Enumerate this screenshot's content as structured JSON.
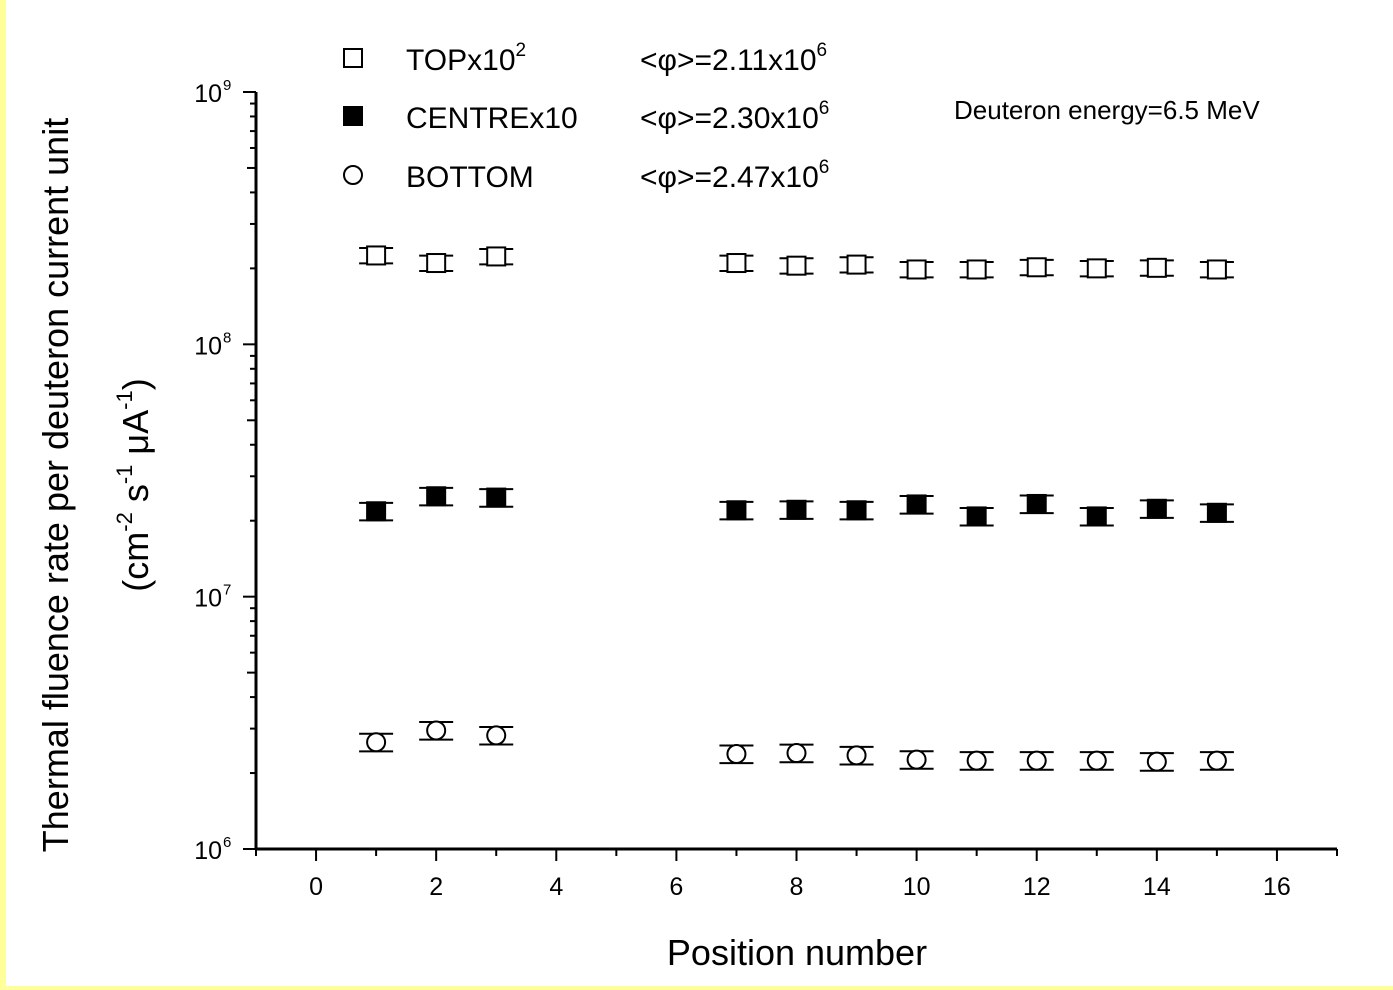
{
  "chart_data": {
    "type": "scatter",
    "title": "",
    "xlabel": "Position number",
    "ylabel_line1": "Thermal fluence rate per deuteron current unit",
    "ylabel_line2": {
      "open": "(cm",
      "e1": "-2",
      "mid1": " s",
      "e2": "-1",
      "mid2": " μA",
      "e3": "-1",
      "close": ")"
    },
    "xlim": [
      -1,
      17
    ],
    "ylim": [
      1000000,
      1000000000
    ],
    "yscale": "log",
    "x_ticks": [
      0,
      2,
      4,
      6,
      8,
      10,
      12,
      14,
      16
    ],
    "x_tick_labels": [
      "0",
      "2",
      "4",
      "6",
      "8",
      "10",
      "12",
      "14",
      "16"
    ],
    "y_ticks": [
      1000000,
      10000000,
      100000000,
      1000000000
    ],
    "y_tick_labels": [
      {
        "base": "10",
        "exp": "6"
      },
      {
        "base": "10",
        "exp": "7"
      },
      {
        "base": "10",
        "exp": "8"
      },
      {
        "base": "10",
        "exp": "9"
      }
    ],
    "annotation": "Deuteron energy=6.5 MeV",
    "legend_position": "top-left",
    "series": [
      {
        "name": "TOPx10",
        "name_exp": "2",
        "avg_label": "<φ>=2.11x10",
        "avg_exp": "6",
        "marker": "open-square",
        "x": [
          1,
          2,
          3,
          7,
          8,
          9,
          10,
          11,
          12,
          13,
          14,
          15
        ],
        "y": [
          225000000,
          210000000,
          223000000,
          210000000,
          205000000,
          207000000,
          198000000,
          198000000,
          202000000,
          200000000,
          201000000,
          198000000
        ],
        "err_rel": 0.07
      },
      {
        "name": "CENTREx10",
        "name_exp": "",
        "avg_label": "<φ>=2.30x10",
        "avg_exp": "6",
        "marker": "filled-square",
        "x": [
          1,
          2,
          3,
          7,
          8,
          9,
          10,
          11,
          12,
          13,
          14,
          15
        ],
        "y": [
          21800000,
          25000000,
          24700000,
          22000000,
          22100000,
          22000000,
          23200000,
          20800000,
          23300000,
          20800000,
          22300000,
          21500000
        ],
        "err_rel": 0.08
      },
      {
        "name": "BOTTOM",
        "name_exp": "",
        "avg_label": "<φ>=2.47x10",
        "avg_exp": "6",
        "marker": "open-circle",
        "x": [
          1,
          2,
          3,
          7,
          8,
          9,
          10,
          11,
          12,
          13,
          14,
          15
        ],
        "y": [
          2650000,
          2950000,
          2820000,
          2380000,
          2400000,
          2350000,
          2260000,
          2240000,
          2240000,
          2240000,
          2220000,
          2240000
        ],
        "err_rel": 0.08
      }
    ]
  }
}
